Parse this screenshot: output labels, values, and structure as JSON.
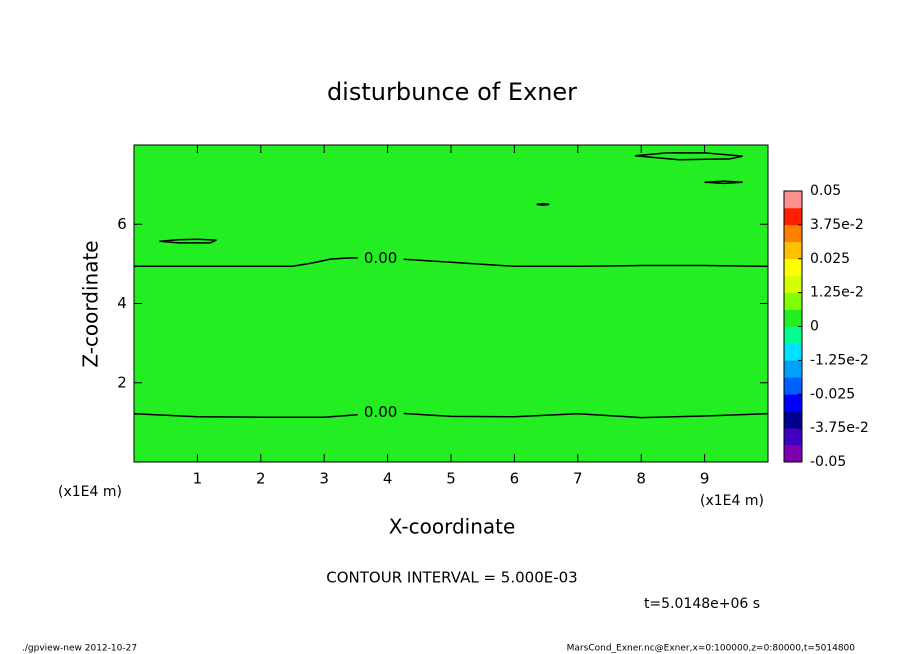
{
  "chart_data": {
    "type": "contour",
    "title": "disturbunce of Exner",
    "x_label": "X-coordinate",
    "y_label": "Z-coordinate",
    "x_unit": "(x1E4 m)",
    "y_unit": "(x1E4 m)",
    "xlim": [
      0,
      10
    ],
    "ylim": [
      0,
      8
    ],
    "xticks": [
      1,
      2,
      3,
      4,
      5,
      6,
      7,
      8,
      9
    ],
    "yticks": [
      2,
      4,
      6
    ],
    "fill_color": "#22ee22",
    "contours": [
      {
        "label": "0.00",
        "x": [
          0,
          1,
          2.5,
          2.8,
          3.1,
          3.4,
          4,
          5,
          6,
          7,
          8,
          9,
          10
        ],
        "y": [
          4.94,
          4.94,
          4.94,
          5.02,
          5.12,
          5.15,
          5.14,
          5.04,
          4.94,
          4.94,
          4.96,
          4.96,
          4.94
        ]
      },
      {
        "label": "0.00",
        "x": [
          0,
          1,
          2,
          3,
          3.6,
          4,
          5,
          6,
          7,
          8,
          9,
          10
        ],
        "y": [
          1.22,
          1.14,
          1.13,
          1.13,
          1.2,
          1.25,
          1.15,
          1.14,
          1.22,
          1.12,
          1.16,
          1.22
        ]
      },
      {
        "x": [
          0.4,
          0.7,
          1.0,
          1.3,
          1.2,
          0.7,
          0.4
        ],
        "y": [
          5.57,
          5.61,
          5.62,
          5.6,
          5.53,
          5.53,
          5.57
        ]
      },
      {
        "x": [
          6.35,
          6.45,
          6.55,
          6.45,
          6.35
        ],
        "y": [
          6.5,
          6.52,
          6.5,
          6.48,
          6.5
        ]
      },
      {
        "x": [
          7.9,
          8.4,
          9.0,
          9.6,
          9.4,
          8.6,
          7.9
        ],
        "y": [
          7.73,
          7.8,
          7.8,
          7.72,
          7.65,
          7.63,
          7.73
        ]
      },
      {
        "x": [
          9.0,
          9.3,
          9.6,
          9.3,
          9.0
        ],
        "y": [
          7.06,
          7.09,
          7.06,
          7.03,
          7.06
        ]
      }
    ],
    "clim": [
      -0.05,
      0.05
    ],
    "colors": [
      "#8000b0",
      "#4000c0",
      "#000090",
      "#0000ff",
      "#0060ff",
      "#00a0ff",
      "#00e0ff",
      "#00ff90",
      "#22ee22",
      "#80ff00",
      "#d8ff00",
      "#ffff00",
      "#ffc000",
      "#ff8000",
      "#ff2000",
      "#ff9090"
    ],
    "cticks": [
      {
        "value": 0.05,
        "label": "0.05"
      },
      {
        "value": 0.0375,
        "label": "3.75e-2"
      },
      {
        "value": 0.025,
        "label": "0.025"
      },
      {
        "value": 0.0125,
        "label": "1.25e-2"
      },
      0,
      {
        "value": -0.0125,
        "label": "-1.25e-2"
      },
      {
        "value": -0.025,
        "label": "-0.025"
      },
      {
        "value": -0.0375,
        "label": "-3.75e-2"
      },
      {
        "value": -0.05,
        "label": "-0.05"
      }
    ],
    "annotations": [
      "CONTOUR INTERVAL = 5.000E-03",
      "t=5.0148e+06 s",
      "./gpview-new  2012-10-27",
      "MarsCond_Exner.nc@Exner,x=0:100000,z=0:80000,t=5014800"
    ]
  }
}
